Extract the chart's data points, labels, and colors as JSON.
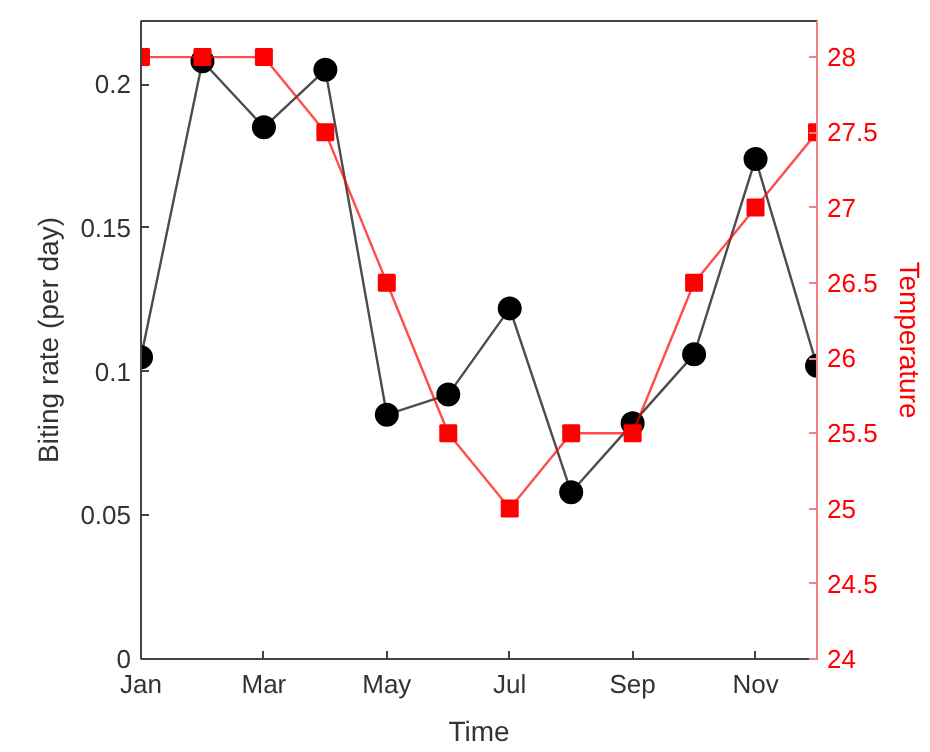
{
  "chart_data": {
    "type": "line",
    "xlabel": "Time",
    "ylabel": "Biting rate (per day)",
    "y2label": "Temperature",
    "categories": [
      "Jan",
      null,
      "Mar",
      null,
      "May",
      null,
      "Jul",
      null,
      "Sep",
      null,
      "Nov",
      null
    ],
    "ylim": [
      0,
      0.222
    ],
    "yticks": [
      0,
      0.05,
      0.1,
      0.15,
      0.2
    ],
    "y2lim": [
      24,
      28.24
    ],
    "y2ticks": [
      24,
      24.5,
      25,
      25.5,
      26,
      26.5,
      27,
      27.5,
      28
    ],
    "grid": false,
    "series": [
      {
        "color": "#000000",
        "marker": "circle",
        "values": [
          0.105,
          0.208,
          0.185,
          0.205,
          0.085,
          0.092,
          0.122,
          0.058,
          0.082,
          0.106,
          0.174,
          0.102
        ]
      },
      {
        "color": "#ff0000",
        "marker": "square",
        "axis": "y2",
        "values": [
          28,
          28,
          28,
          27.5,
          26.5,
          25.5,
          25,
          25.5,
          25.5,
          26.5,
          27,
          27.5
        ]
      }
    ]
  }
}
